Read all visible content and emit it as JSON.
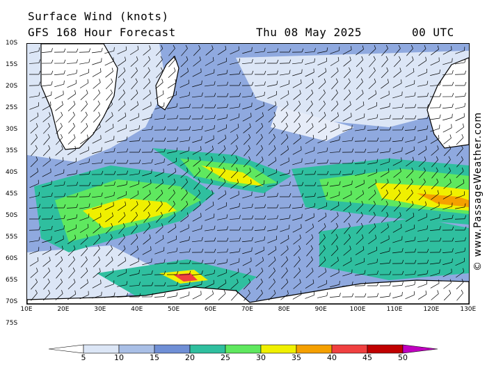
{
  "header": {
    "title": "Surface Wind (knots)",
    "forecast": "GFS 168 Hour Forecast",
    "date": "Thu 08 May 2025",
    "time": "00 UTC"
  },
  "copyright": "© www.PassageWeather.com",
  "axes": {
    "lat_labels": [
      "10S",
      "15S",
      "20S",
      "25S",
      "30S",
      "35S",
      "40S",
      "45S",
      "50S",
      "55S",
      "60S",
      "65S",
      "70S",
      "75S"
    ],
    "lon_labels": [
      "10E",
      "20E",
      "30E",
      "40E",
      "50E",
      "60E",
      "70E",
      "80E",
      "90E",
      "100E",
      "110E",
      "120E",
      "130E"
    ]
  },
  "colorbar": {
    "labels": [
      "5",
      "10",
      "15",
      "20",
      "25",
      "30",
      "35",
      "40",
      "45",
      "50"
    ],
    "colors": [
      "#ffffff",
      "#dce6f6",
      "#a9bfe6",
      "#6f8fd6",
      "#2fbf9f",
      "#5fe85f",
      "#f0f000",
      "#f5a000",
      "#f04040",
      "#c00000",
      "#c000c0"
    ]
  },
  "colors": {
    "ocean_base": "#8fa9df",
    "calm": "#e6ecf8",
    "land": "#ffffff"
  }
}
